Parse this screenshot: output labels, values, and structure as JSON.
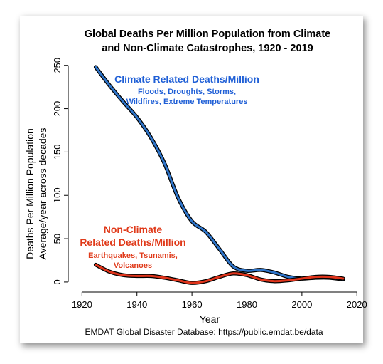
{
  "chart_data": {
    "type": "line",
    "title": [
      "Global Deaths Per Million Population from Climate",
      "and Non-Climate Catastrophes, 1920 - 2019"
    ],
    "xlabel": "Year",
    "ylabel": [
      "Deaths Per Million Population",
      "Average/year across decades"
    ],
    "xlim": [
      1915,
      2022
    ],
    "ylim": [
      -5,
      258
    ],
    "xticks": [
      1920,
      1940,
      1960,
      1980,
      2000,
      2020
    ],
    "yticks": [
      0,
      50,
      100,
      150,
      200,
      250
    ],
    "grid": false,
    "series": [
      {
        "name": "Climate Related Deaths/Million",
        "color": "#2e74c9",
        "x": [
          1925,
          1930,
          1935,
          1940,
          1945,
          1950,
          1955,
          1960,
          1965,
          1970,
          1975,
          1980,
          1985,
          1990,
          1995,
          2000,
          2005,
          2010,
          2015
        ],
        "y": [
          248,
          227,
          208,
          190,
          167,
          137,
          97,
          70,
          58,
          38,
          18,
          13,
          14,
          11,
          6,
          4,
          5,
          5,
          3
        ]
      },
      {
        "name": "Non-Climate Related Deaths/Million",
        "color": "#e0341b",
        "x": [
          1925,
          1930,
          1935,
          1940,
          1945,
          1950,
          1955,
          1960,
          1965,
          1970,
          1975,
          1980,
          1985,
          1990,
          1995,
          2000,
          2005,
          2010,
          2015
        ],
        "y": [
          20,
          12,
          8,
          7,
          7,
          5,
          2,
          -1,
          1,
          6,
          10,
          8,
          3,
          1,
          2,
          4,
          6,
          6,
          4
        ]
      }
    ],
    "annotations": {
      "climate_title": "Climate Related Deaths/Million",
      "climate_sub1": "Floods, Droughts, Storms,",
      "climate_sub2": "Wildfires, Extreme Temperatures",
      "nonclimate_title1": "Non-Climate",
      "nonclimate_title2": "Related Deaths/Million",
      "nonclimate_sub1": "Earthquakes, Tsunamis,",
      "nonclimate_sub2": "Volcanoes"
    },
    "source": "EMDAT Global Disaster Database: https://public.emdat.be/data"
  }
}
